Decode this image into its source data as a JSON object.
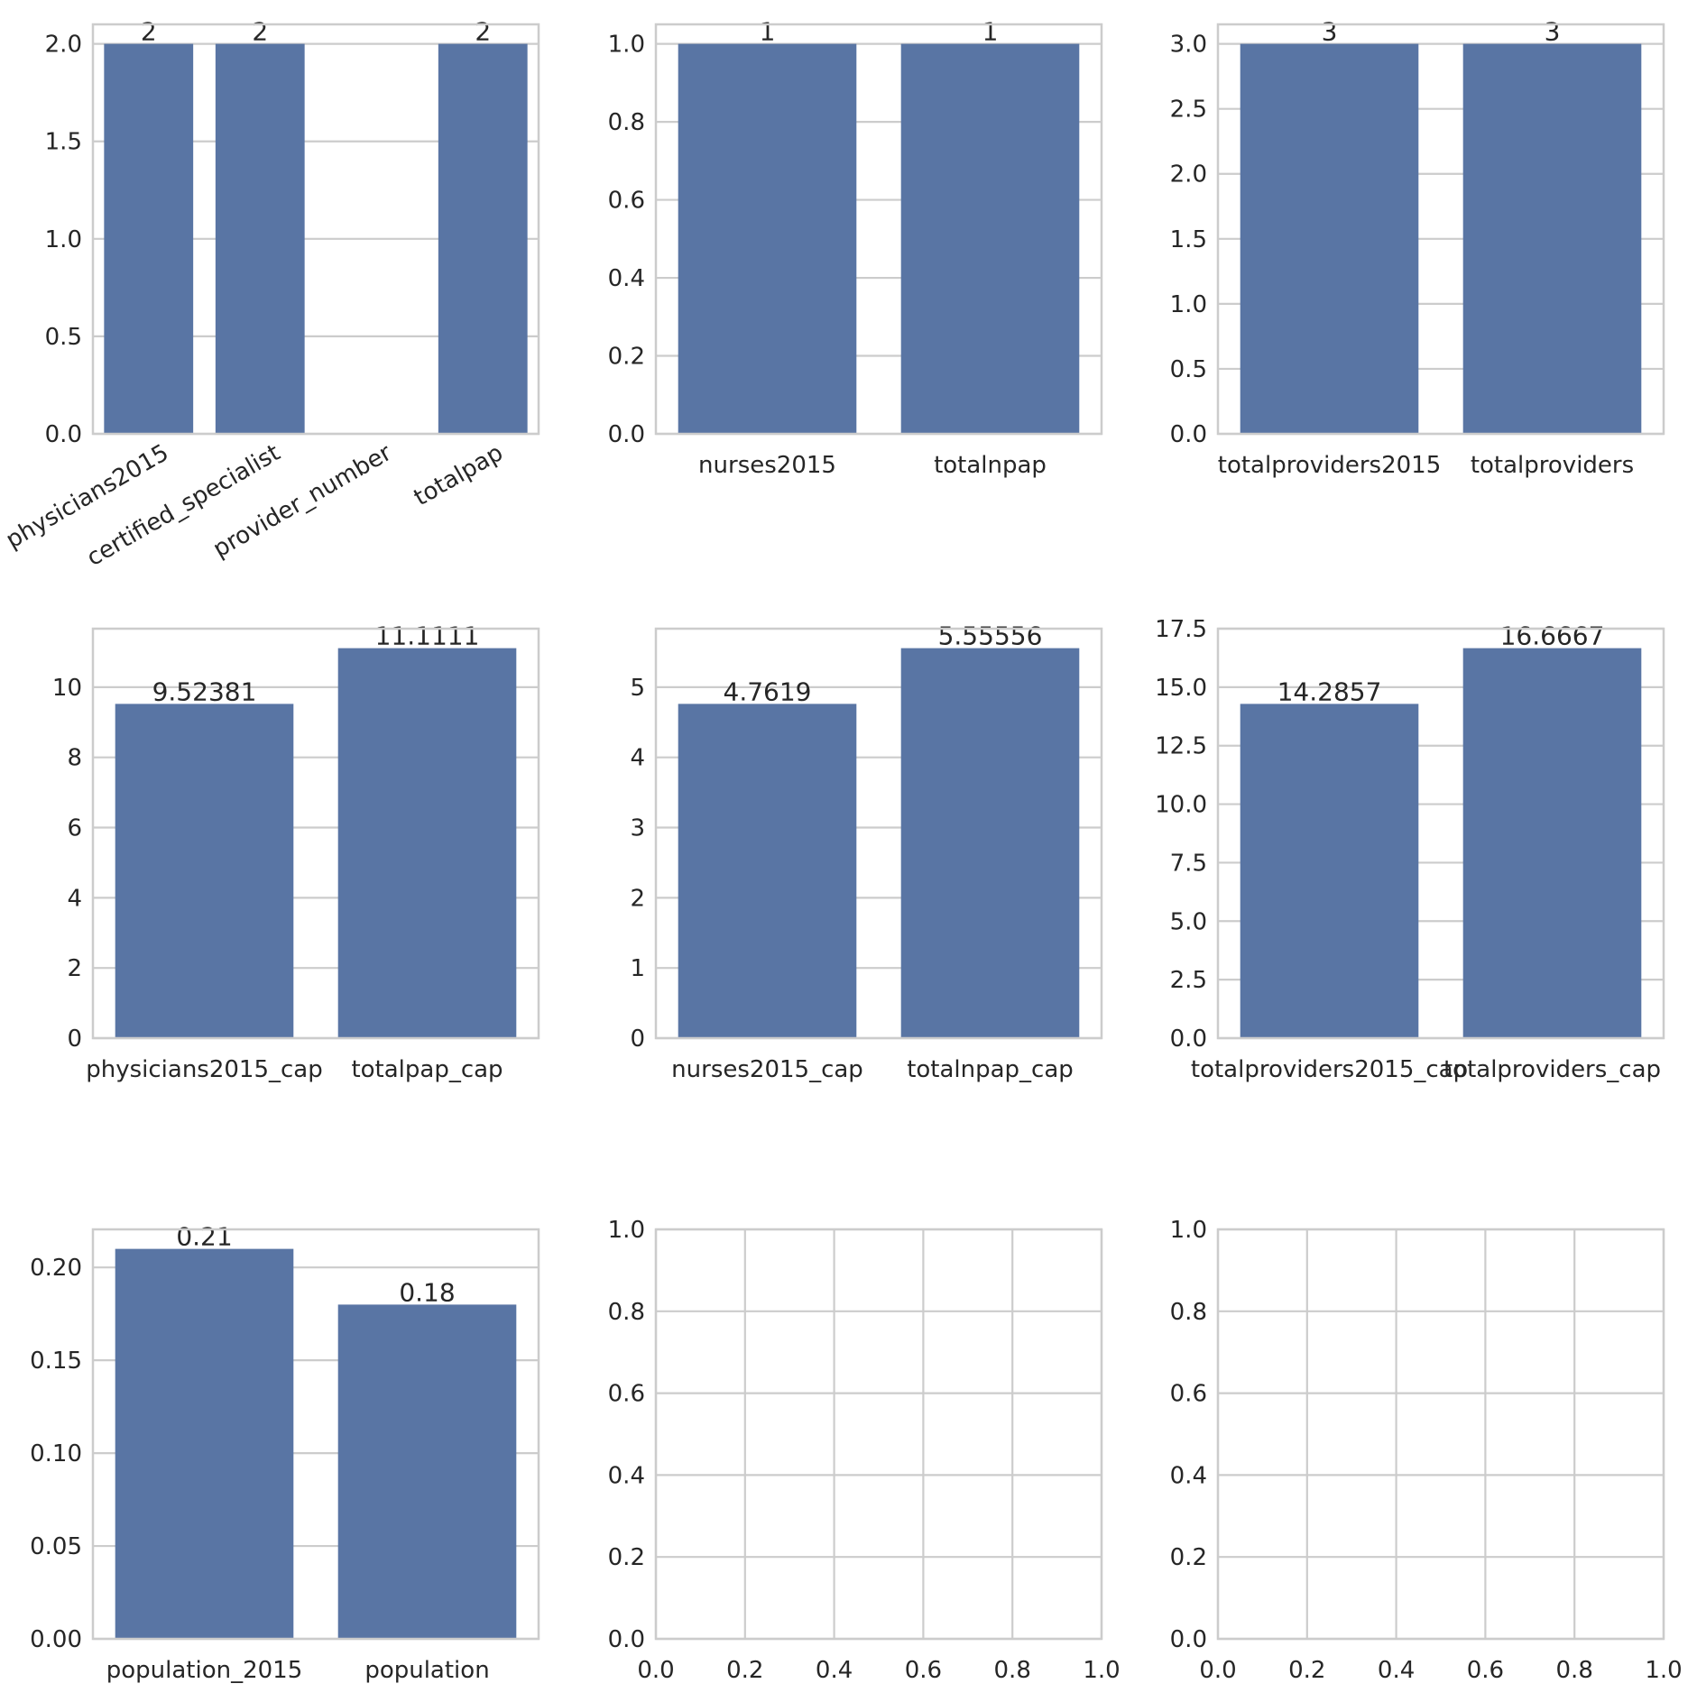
{
  "colors": {
    "bar": "#5975a4",
    "grid": "#cccccc",
    "text": "#262626",
    "background": "#ffffff"
  },
  "chart_data": [
    {
      "type": "bar",
      "categories": [
        "physicians2015",
        "certified_specialist",
        "provider_number",
        "totalpap"
      ],
      "values": [
        2,
        2,
        null,
        2
      ],
      "data_labels": [
        "2",
        "2",
        "",
        "2"
      ],
      "ylim": [
        0,
        2.1
      ],
      "yticks": [
        "0.0",
        "0.5",
        "1.0",
        "1.5",
        "2.0"
      ],
      "grid": true,
      "xtick_rotation_deg": 30
    },
    {
      "type": "bar",
      "categories": [
        "nurses2015",
        "totalnpap"
      ],
      "values": [
        1,
        1
      ],
      "data_labels": [
        "1",
        "1"
      ],
      "ylim": [
        0,
        1.05
      ],
      "yticks": [
        "0.0",
        "0.2",
        "0.4",
        "0.6",
        "0.8",
        "1.0"
      ],
      "grid": true
    },
    {
      "type": "bar",
      "categories": [
        "totalproviders2015",
        "totalproviders"
      ],
      "values": [
        3,
        3
      ],
      "data_labels": [
        "3",
        "3"
      ],
      "ylim": [
        0,
        3.15
      ],
      "yticks": [
        "0.0",
        "0.5",
        "1.0",
        "1.5",
        "2.0",
        "2.5",
        "3.0"
      ],
      "grid": true
    },
    {
      "type": "bar",
      "categories": [
        "physicians2015_cap",
        "totalpap_cap"
      ],
      "values": [
        9.52381,
        11.1111
      ],
      "data_labels": [
        "9.52381",
        "11.1111"
      ],
      "ylim": [
        0,
        11.6667
      ],
      "yticks": [
        "0",
        "2",
        "4",
        "6",
        "8",
        "10"
      ],
      "grid": true
    },
    {
      "type": "bar",
      "categories": [
        "nurses2015_cap",
        "totalnpap_cap"
      ],
      "values": [
        4.7619,
        5.55556
      ],
      "data_labels": [
        "4.7619",
        "5.55556"
      ],
      "ylim": [
        0,
        5.8333
      ],
      "yticks": [
        "0",
        "1",
        "2",
        "3",
        "4",
        "5"
      ],
      "grid": true
    },
    {
      "type": "bar",
      "categories": [
        "totalproviders2015_cap",
        "totalproviders_cap"
      ],
      "values": [
        14.2857,
        16.6667
      ],
      "data_labels": [
        "14.2857",
        "16.6667"
      ],
      "ylim": [
        0,
        17.5
      ],
      "yticks": [
        "0.0",
        "2.5",
        "5.0",
        "7.5",
        "10.0",
        "12.5",
        "15.0",
        "17.5"
      ],
      "grid": true
    },
    {
      "type": "bar",
      "categories": [
        "population_2015",
        "population"
      ],
      "values": [
        0.21,
        0.18
      ],
      "data_labels": [
        "0.21",
        "0.18"
      ],
      "ylim": [
        0,
        0.2205
      ],
      "yticks": [
        "0.00",
        "0.05",
        "0.10",
        "0.15",
        "0.20"
      ],
      "grid": true
    },
    {
      "type": "empty",
      "xlim": [
        0,
        1
      ],
      "ylim": [
        0,
        1
      ],
      "xticks": [
        "0.0",
        "0.2",
        "0.4",
        "0.6",
        "0.8",
        "1.0"
      ],
      "yticks": [
        "0.0",
        "0.2",
        "0.4",
        "0.6",
        "0.8",
        "1.0"
      ],
      "grid": true
    },
    {
      "type": "empty",
      "xlim": [
        0,
        1
      ],
      "ylim": [
        0,
        1
      ],
      "xticks": [
        "0.0",
        "0.2",
        "0.4",
        "0.6",
        "0.8",
        "1.0"
      ],
      "yticks": [
        "0.0",
        "0.2",
        "0.4",
        "0.6",
        "0.8",
        "1.0"
      ],
      "grid": true
    }
  ]
}
